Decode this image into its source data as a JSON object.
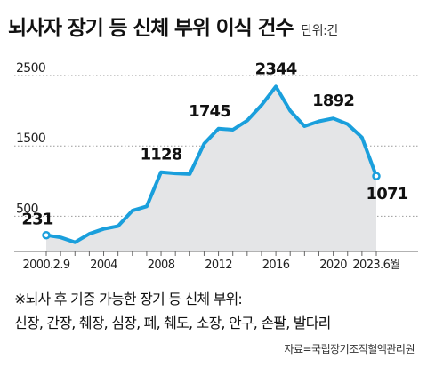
{
  "title": "뇌사자 장기 등 신체 부위 이식 건수",
  "unit": "단위:건",
  "chart_data": {
    "type": "area",
    "line_color": "#1a9fdc",
    "fill_color": "#e4e5e7",
    "yticks": [
      500,
      1500,
      2500
    ],
    "ylim": [
      0,
      2700
    ],
    "xticks": [
      "2000.2.9",
      "2004",
      "2008",
      "2012",
      "2016",
      "2020",
      "2023.6월"
    ],
    "x": [
      2000,
      2001,
      2002,
      2003,
      2004,
      2005,
      2006,
      2007,
      2008,
      2009,
      2010,
      2011,
      2012,
      2013,
      2014,
      2015,
      2016,
      2017,
      2018,
      2019,
      2020,
      2021,
      2022,
      2023
    ],
    "values": [
      231,
      200,
      130,
      250,
      320,
      360,
      580,
      640,
      1128,
      1110,
      1100,
      1530,
      1745,
      1730,
      1860,
      2080,
      2344,
      2000,
      1780,
      1850,
      1892,
      1810,
      1620,
      1071
    ],
    "labels": [
      {
        "index": 0,
        "text": "231"
      },
      {
        "index": 8,
        "text": "1128"
      },
      {
        "index": 12,
        "text": "1745"
      },
      {
        "index": 16,
        "text": "2344"
      },
      {
        "index": 20,
        "text": "1892"
      },
      {
        "index": 23,
        "text": "1071"
      }
    ]
  },
  "footnote_line1": "※뇌사 후 기증 가능한 장기 등 신체 부위:",
  "footnote_line2": "신장, 간장, 췌장, 심장, 폐, 췌도, 소장, 안구, 손팔, 발다리",
  "source": "자료=국립장기조직혈액관리원"
}
